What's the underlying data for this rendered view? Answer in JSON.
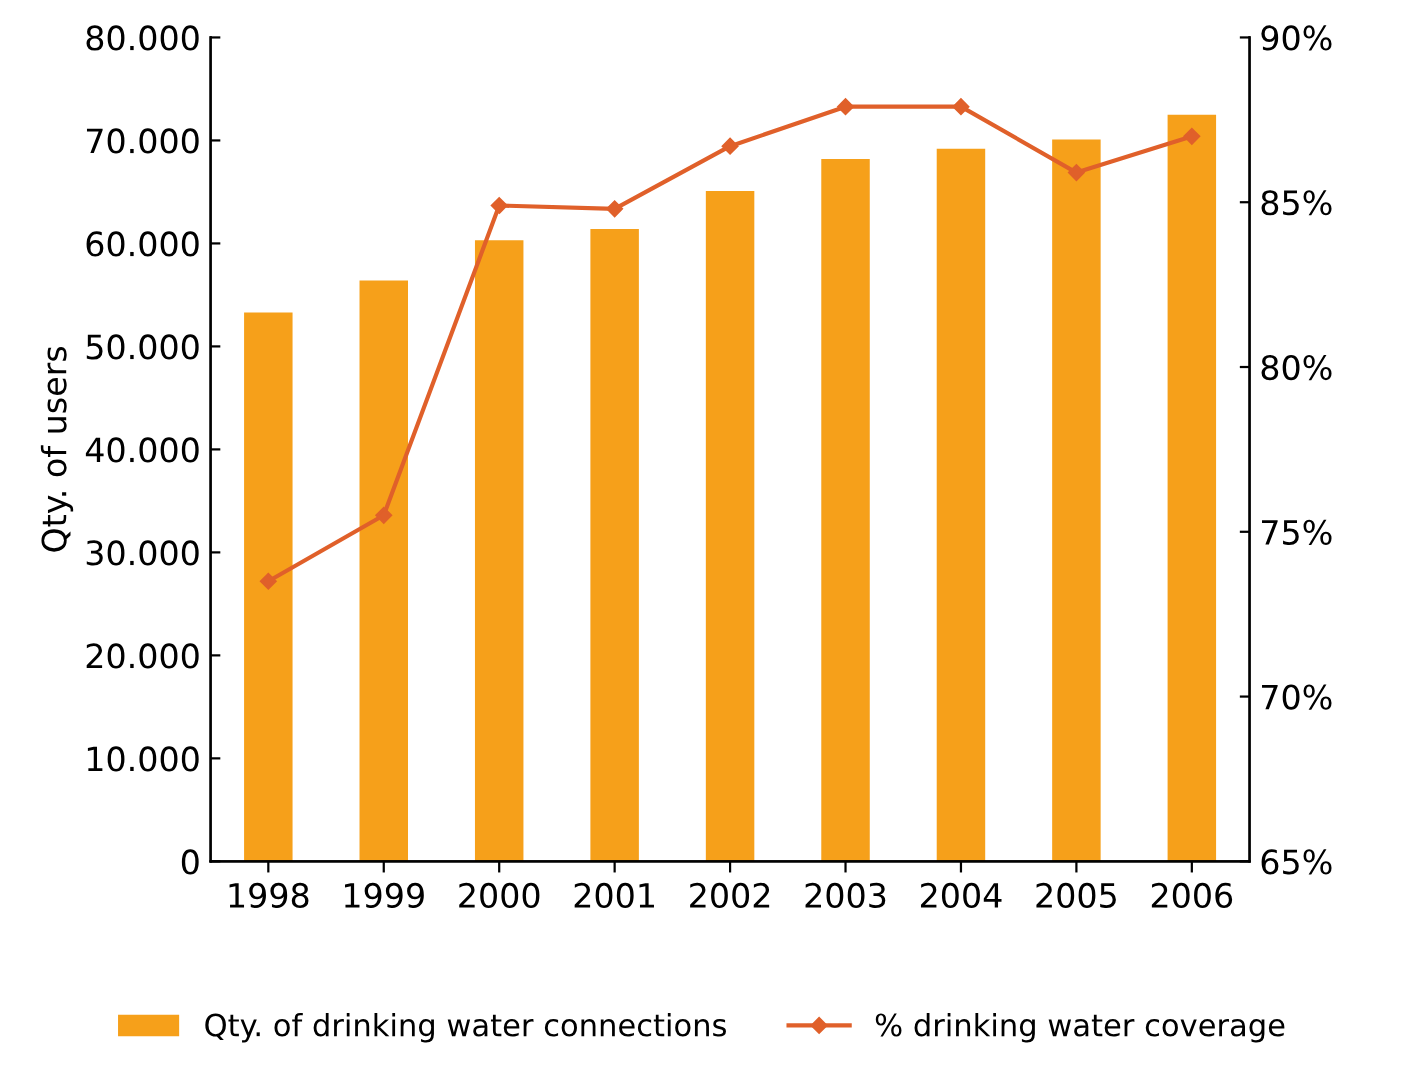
{
  "chart_data": {
    "type": "bar",
    "ylabel": "Qty. of users",
    "categories": [
      "1998",
      "1999",
      "2000",
      "2001",
      "2002",
      "2003",
      "2004",
      "2005",
      "2006"
    ],
    "series": [
      {
        "name": "Qty. of drinking water connections",
        "color": "#f6a01a",
        "values": [
          53300,
          56400,
          60300,
          61400,
          65100,
          68200,
          69200,
          70100,
          72500
        ]
      },
      {
        "name": "% drinking water coverage",
        "type": "line",
        "axis": "y2",
        "color": "#e0602a",
        "marker": "diamond",
        "values": [
          73.5,
          75.5,
          84.9,
          84.8,
          86.7,
          87.9,
          87.9,
          85.9,
          87.0
        ]
      }
    ],
    "ylim": [
      0,
      80000
    ],
    "yticks": [
      0,
      {
        "value": 10000,
        "label": "10.000"
      },
      {
        "value": 20000,
        "label": "20.000"
      },
      {
        "value": 30000,
        "label": "30.000"
      },
      {
        "value": 40000,
        "label": "40.000"
      },
      {
        "value": 50000,
        "label": "50.000"
      },
      {
        "value": 60000,
        "label": "60.000"
      },
      {
        "value": 70000,
        "label": "70.000"
      },
      {
        "value": 80000,
        "label": "80.000"
      }
    ],
    "y2lim": [
      65,
      90
    ],
    "y2ticks": [
      {
        "value": 65,
        "label": "65%"
      },
      {
        "value": 70,
        "label": "70%"
      },
      {
        "value": 75,
        "label": "75%"
      },
      {
        "value": 80,
        "label": "80%"
      },
      {
        "value": 85,
        "label": "85%"
      },
      {
        "value": 90,
        "label": "90%"
      }
    ],
    "grid": false,
    "legend": "bottom"
  }
}
